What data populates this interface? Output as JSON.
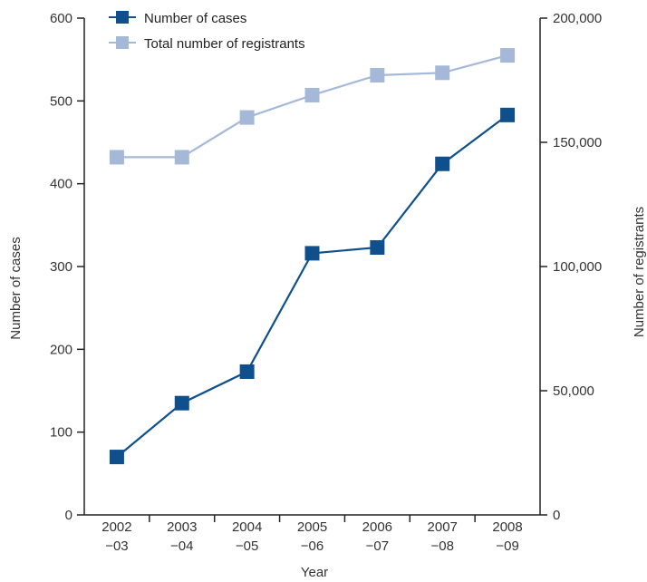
{
  "chart_data": {
    "type": "line",
    "title": "",
    "xlabel": "Year",
    "ylabel_left": "Number of cases",
    "ylabel_right": "Number of registrants",
    "categories": [
      [
        "2002",
        "−03"
      ],
      [
        "2003",
        "−04"
      ],
      [
        "2004",
        "−05"
      ],
      [
        "2005",
        "−06"
      ],
      [
        "2006",
        "−07"
      ],
      [
        "2007",
        "−08"
      ],
      [
        "2008",
        "−09"
      ]
    ],
    "ylim_left": [
      0,
      600
    ],
    "yticks_left": [
      0,
      100,
      200,
      300,
      400,
      500,
      600
    ],
    "ytick_labels_left": [
      "0",
      "100",
      "200",
      "300",
      "400",
      "500",
      "600"
    ],
    "ylim_right": [
      0,
      200000
    ],
    "yticks_right": [
      0,
      50000,
      100000,
      150000,
      200000
    ],
    "ytick_labels_right": [
      "0",
      "50,000",
      "100,000",
      "150,000",
      "200,000"
    ],
    "grid": false,
    "legend_position": "top-left",
    "series": [
      {
        "name": "Total number of registrants",
        "axis": "right",
        "color": "#a6b8d8",
        "marker": "square",
        "values": [
          144000,
          144000,
          160000,
          169000,
          177000,
          178000,
          185000
        ]
      },
      {
        "name": "Number of cases",
        "axis": "left",
        "color": "#0e4f8c",
        "marker": "square",
        "values": [
          70,
          135,
          173,
          316,
          323,
          424,
          483
        ]
      }
    ]
  }
}
